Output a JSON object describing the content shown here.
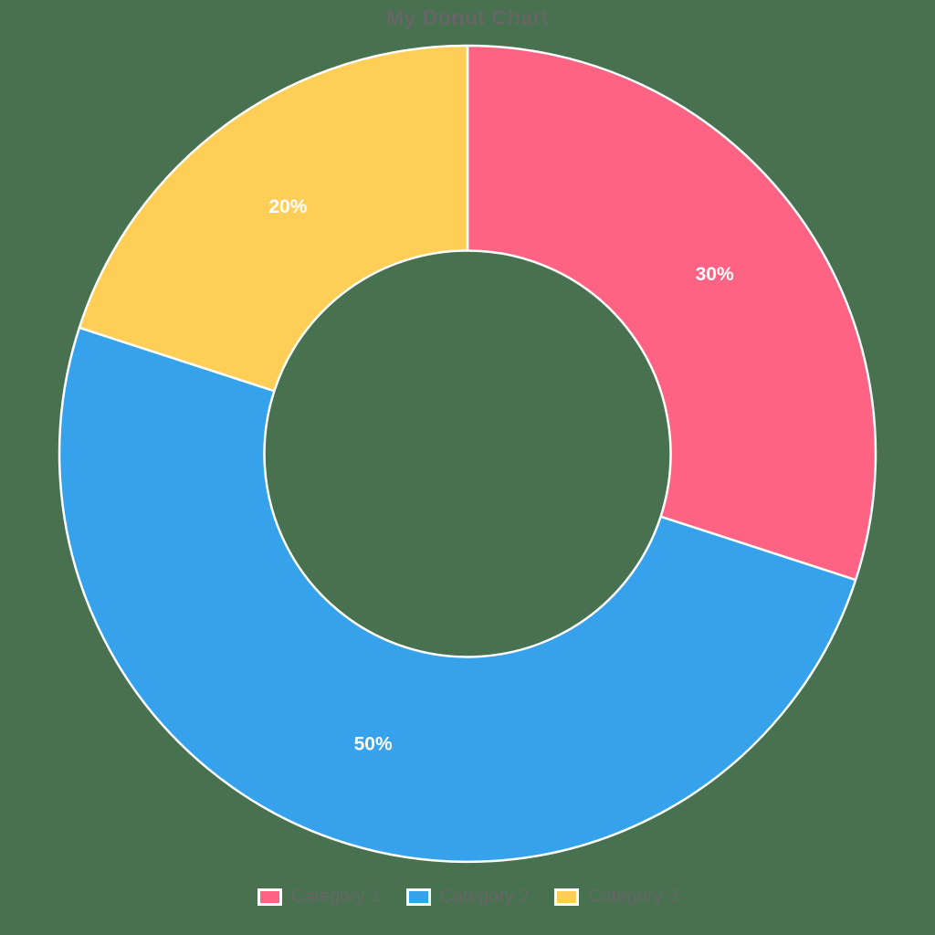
{
  "title": "My Donut Chart",
  "colors": {
    "background": "#47714F",
    "title_text": "#666666",
    "legend_text": "#666666",
    "label_text": "#FFFFFF",
    "segment_border": "#FFFFFF"
  },
  "chart_data": {
    "type": "pie",
    "subtype": "donut",
    "title": "My Donut Chart",
    "categories": [
      "Category 1",
      "Category 2",
      "Category 3"
    ],
    "values": [
      30,
      50,
      20
    ],
    "labels": [
      "30%",
      "50%",
      "20%"
    ],
    "segment_colors": [
      "#FF6384",
      "#36A2EB",
      "#FFCE56"
    ],
    "start_angle_deg": 0,
    "direction": "clockwise",
    "cutout_percent": 50,
    "legend_position": "bottom"
  },
  "legend": {
    "items": [
      {
        "label": "Category 1",
        "color": "#FF6384"
      },
      {
        "label": "Category 2",
        "color": "#36A2EB"
      },
      {
        "label": "Category 3",
        "color": "#FFCE56"
      }
    ]
  }
}
